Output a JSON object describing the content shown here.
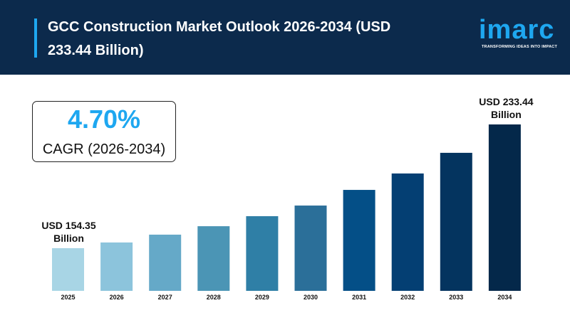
{
  "header": {
    "title": "GCC Construction Market Outlook 2026-2034 (USD 233.44 Billion)",
    "logo": "imarc",
    "tagline": "TRANSFORMING IDEAS INTO IMPACT"
  },
  "cagr": {
    "value": "4.70%",
    "label": "CAGR (2026-2034)"
  },
  "colors": {
    "header_bg": "#0c2a4c",
    "accent": "#1ea7f0"
  },
  "chart_data": {
    "type": "bar",
    "title": "",
    "xlabel": "",
    "ylabel": "",
    "grid": false,
    "categories": [
      "2025",
      "2026",
      "2027",
      "2028",
      "2029",
      "2030",
      "2031",
      "2032",
      "2033",
      "2034"
    ],
    "values": [
      154.35,
      158.0,
      163.0,
      168.4,
      174.8,
      181.6,
      191.6,
      202.1,
      215.3,
      233.44
    ],
    "bar_colors": [
      "#a8d5e5",
      "#8cc4dc",
      "#65a9c8",
      "#4b95b5",
      "#2f7fa6",
      "#2b6f99",
      "#044f87",
      "#043f73",
      "#04345f",
      "#04284a"
    ],
    "annotations": [
      {
        "category": "2025",
        "line1": "USD 154.35",
        "line2": "Billion"
      },
      {
        "category": "2034",
        "line1": "USD 233.44",
        "line2": "Billion"
      }
    ]
  }
}
